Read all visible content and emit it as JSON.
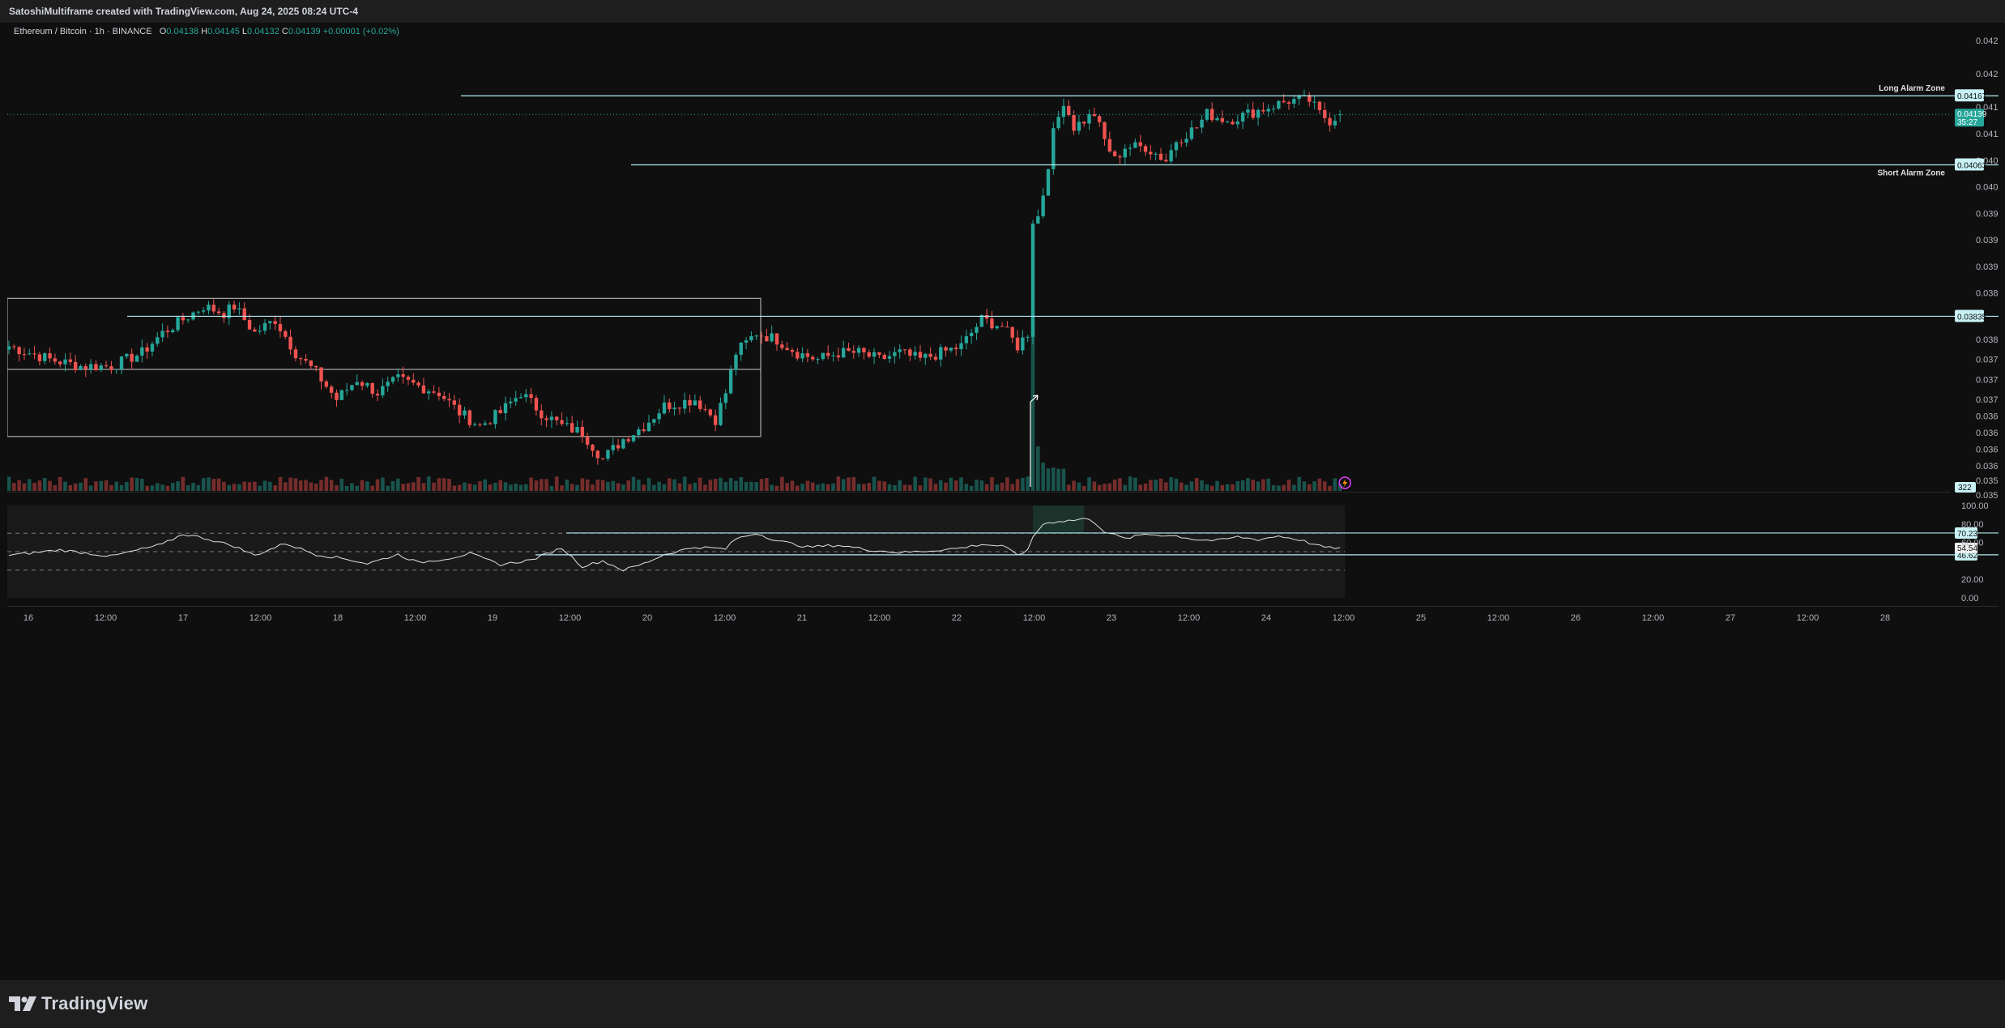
{
  "header": {
    "title": "SatoshiMultiframe created with TradingView.com, Aug 24, 2025 08:24 UTC-4"
  },
  "legend": {
    "symbol": "Ethereum / Bitcoin · 1h · BINANCE",
    "o_label": "O",
    "o_value": "0.04138",
    "h_label": "H",
    "h_value": "0.04145",
    "l_label": "L",
    "l_value": "0.04132",
    "c_label": "C",
    "c_value": "0.04139",
    "change": "+0.00001 (+0.02%)"
  },
  "footer": {
    "brand": "TradingView"
  },
  "colors": {
    "up": "#26a69a",
    "down": "#ef5350",
    "level_line": "#b2ebf2",
    "badge_bg": "#c9f2f6",
    "price_badge": "#26a69a",
    "rsi_line": "#e0e0e0",
    "background": "#0f0f0f"
  },
  "icons": {
    "alert": "lightning-alert-icon",
    "logo": "tradingview-logo-icon"
  },
  "chart_data": [
    {
      "type": "candlestick",
      "symbol": "ETHBTC",
      "timeframe": "1h",
      "ylim": [
        0.03555,
        0.0426
      ],
      "ytick_labels": [
        "0.04250",
        "0.04200",
        "0.04150",
        "0.04110",
        "0.04070",
        "0.04030",
        "0.03990",
        "0.03950",
        "0.03910",
        "0.03870",
        "0.03800",
        "0.03770",
        "0.03740",
        "0.03710",
        "0.03685",
        "0.03660",
        "0.03635",
        "0.03610",
        "0.03588",
        "0.03566"
      ],
      "xtick_labels": [
        "16",
        "12:00",
        "17",
        "12:00",
        "18",
        "12:00",
        "19",
        "12:00",
        "20",
        "12:00",
        "21",
        "12:00",
        "22",
        "12:00",
        "23",
        "12:00",
        "24",
        "12:00",
        "25",
        "12:00",
        "26",
        "12:00",
        "27",
        "12:00",
        "28"
      ],
      "key_points": [
        [
          0,
          0.0379
        ],
        [
          8,
          0.0377
        ],
        [
          14,
          0.0376
        ],
        [
          20,
          0.0376
        ],
        [
          26,
          0.0378
        ],
        [
          30,
          0.0381
        ],
        [
          34,
          0.0383
        ],
        [
          38,
          0.0385
        ],
        [
          42,
          0.0384
        ],
        [
          44,
          0.0385
        ],
        [
          48,
          0.0381
        ],
        [
          52,
          0.0383
        ],
        [
          56,
          0.0378
        ],
        [
          60,
          0.0375
        ],
        [
          64,
          0.0371
        ],
        [
          68,
          0.0374
        ],
        [
          72,
          0.0372
        ],
        [
          76,
          0.0374
        ],
        [
          80,
          0.0373
        ],
        [
          84,
          0.0372
        ],
        [
          88,
          0.0369
        ],
        [
          92,
          0.0367
        ],
        [
          96,
          0.0369
        ],
        [
          100,
          0.0372
        ],
        [
          104,
          0.0369
        ],
        [
          108,
          0.0367
        ],
        [
          112,
          0.0366
        ],
        [
          116,
          0.0362
        ],
        [
          120,
          0.0365
        ],
        [
          124,
          0.0367
        ],
        [
          128,
          0.037
        ],
        [
          134,
          0.0371
        ],
        [
          138,
          0.0368
        ],
        [
          140,
          0.0372
        ],
        [
          142,
          0.0378
        ],
        [
          146,
          0.0381
        ],
        [
          150,
          0.038
        ],
        [
          154,
          0.0378
        ],
        [
          158,
          0.0377
        ],
        [
          162,
          0.0378
        ],
        [
          166,
          0.0378
        ],
        [
          170,
          0.0377
        ],
        [
          174,
          0.0378
        ],
        [
          178,
          0.0377
        ],
        [
          182,
          0.0378
        ],
        [
          186,
          0.0379
        ],
        [
          190,
          0.0383
        ],
        [
          194,
          0.0382
        ],
        [
          197,
          0.0379
        ],
        [
          199,
          0.0381
        ],
        [
          200,
          0.0398
        ],
        [
          201,
          0.03985
        ],
        [
          202,
          0.0402
        ],
        [
          204,
          0.0411
        ],
        [
          206,
          0.0416
        ],
        [
          208,
          0.0412
        ],
        [
          212,
          0.0414
        ],
        [
          214,
          0.041
        ],
        [
          216,
          0.0407
        ],
        [
          218,
          0.0409
        ],
        [
          222,
          0.0409
        ],
        [
          226,
          0.0407
        ],
        [
          228,
          0.041
        ],
        [
          230,
          0.0411
        ],
        [
          232,
          0.0412
        ],
        [
          234,
          0.0414
        ],
        [
          238,
          0.0413
        ],
        [
          242,
          0.0414
        ],
        [
          246,
          0.0415
        ],
        [
          250,
          0.0416
        ],
        [
          254,
          0.0416
        ],
        [
          256,
          0.0414
        ],
        [
          258,
          0.0413
        ],
        [
          260,
          0.04139
        ]
      ],
      "last_candle": {
        "open": 0.04138,
        "high": 0.04145,
        "low": 0.04132,
        "close": 0.04139
      },
      "horizontal_levels": [
        {
          "price": 0.04167,
          "label": "Long Alarm Zone",
          "badge": "0.04167"
        },
        {
          "price": 0.04063,
          "label": "Short Alarm Zone",
          "badge": "0.04063"
        },
        {
          "price": 0.03835,
          "label": "",
          "badge": "0.03835"
        }
      ],
      "range_box": {
        "top": 0.03862,
        "mid": 0.03755,
        "bottom": 0.03654
      },
      "current_price": "0.04139",
      "countdown": "35:27",
      "volume_badge": "322"
    },
    {
      "type": "line",
      "name": "RSI",
      "ylim": [
        0,
        100
      ],
      "ytick_labels": [
        "100.00",
        "80.00",
        "60.00",
        "20.00",
        "0.00"
      ],
      "bands": [
        70,
        50,
        30
      ],
      "key_points": [
        [
          0,
          46
        ],
        [
          10,
          52
        ],
        [
          20,
          45
        ],
        [
          30,
          58
        ],
        [
          34,
          69
        ],
        [
          38,
          65
        ],
        [
          44,
          56
        ],
        [
          48,
          46
        ],
        [
          54,
          59
        ],
        [
          60,
          47
        ],
        [
          66,
          42
        ],
        [
          70,
          37
        ],
        [
          76,
          47
        ],
        [
          80,
          38
        ],
        [
          86,
          43
        ],
        [
          90,
          48
        ],
        [
          96,
          36
        ],
        [
          102,
          41
        ],
        [
          108,
          54
        ],
        [
          112,
          34
        ],
        [
          116,
          40
        ],
        [
          120,
          30
        ],
        [
          124,
          37
        ],
        [
          128,
          47
        ],
        [
          134,
          55
        ],
        [
          140,
          53
        ],
        [
          142,
          64
        ],
        [
          146,
          70
        ],
        [
          150,
          62
        ],
        [
          156,
          55
        ],
        [
          162,
          57
        ],
        [
          168,
          52
        ],
        [
          174,
          49
        ],
        [
          180,
          51
        ],
        [
          186,
          54
        ],
        [
          190,
          58
        ],
        [
          194,
          56
        ],
        [
          197,
          47
        ],
        [
          199,
          51
        ],
        [
          200,
          66
        ],
        [
          202,
          80
        ],
        [
          205,
          83
        ],
        [
          208,
          84
        ],
        [
          210,
          86
        ],
        [
          212,
          82
        ],
        [
          214,
          72
        ],
        [
          218,
          64
        ],
        [
          222,
          69
        ],
        [
          228,
          67
        ],
        [
          232,
          63
        ],
        [
          236,
          62
        ],
        [
          240,
          66
        ],
        [
          244,
          63
        ],
        [
          248,
          67
        ],
        [
          252,
          63
        ],
        [
          256,
          56
        ],
        [
          258,
          54
        ],
        [
          260,
          54.54
        ]
      ],
      "levels": [
        {
          "value": 70.23,
          "badge": "70.23"
        },
        {
          "value": 46.62,
          "badge": "46.62"
        }
      ],
      "current_value": "54.54"
    }
  ]
}
